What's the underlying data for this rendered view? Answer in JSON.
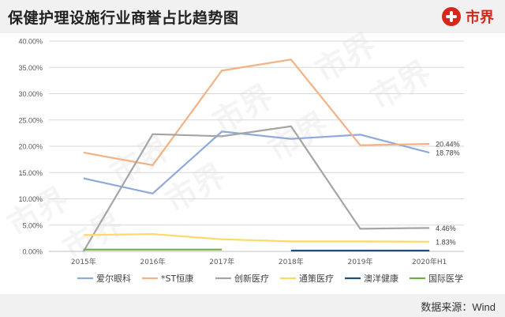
{
  "header": {
    "title": "保健护理设施行业商誉占比趋势图",
    "logo_text": "市界"
  },
  "footer": {
    "source": "数据来源：Wind"
  },
  "watermark": "市界",
  "chart_data": {
    "type": "line",
    "title": "保健护理设施行业商誉占比趋势图",
    "xlabel": "",
    "ylabel": "",
    "categories": [
      "2015年",
      "2016年",
      "2017年",
      "2018年",
      "2019年",
      "2020年H1"
    ],
    "ylim": [
      0,
      40
    ],
    "yticks": [
      "0.00%",
      "5.00%",
      "10.00%",
      "15.00%",
      "20.00%",
      "25.00%",
      "30.00%",
      "35.00%",
      "40.00%"
    ],
    "grid": true,
    "legend": "bottom",
    "series": [
      {
        "name": "爱尔眼科",
        "color": "#8ea9db",
        "values": [
          13.9,
          11.0,
          22.8,
          21.4,
          22.2,
          18.78
        ]
      },
      {
        "name": "*ST恒康",
        "color": "#f4b183",
        "values": [
          18.8,
          16.4,
          34.4,
          36.5,
          20.2,
          20.44
        ]
      },
      {
        "name": "创新医疗",
        "color": "#a5a5a5",
        "values": [
          0.0,
          22.3,
          21.9,
          23.8,
          4.3,
          4.46
        ]
      },
      {
        "name": "通策医疗",
        "color": "#ffd966",
        "values": [
          3.1,
          3.3,
          2.3,
          1.9,
          1.9,
          1.83
        ]
      },
      {
        "name": "澳洋健康",
        "color": "#1f4e79",
        "values": [
          null,
          null,
          null,
          0.15,
          0.15,
          0.15
        ]
      },
      {
        "name": "国际医学",
        "color": "#70ad47",
        "values": [
          0.35,
          0.35,
          0.35,
          null,
          null,
          null
        ]
      }
    ],
    "data_labels": [
      {
        "series": "*ST恒康",
        "index": 5,
        "text": "20.44%"
      },
      {
        "series": "爱尔眼科",
        "index": 5,
        "text": "18.78%"
      },
      {
        "series": "创新医疗",
        "index": 5,
        "text": "4.46%"
      },
      {
        "series": "通策医疗",
        "index": 5,
        "text": "1.83%"
      }
    ]
  }
}
